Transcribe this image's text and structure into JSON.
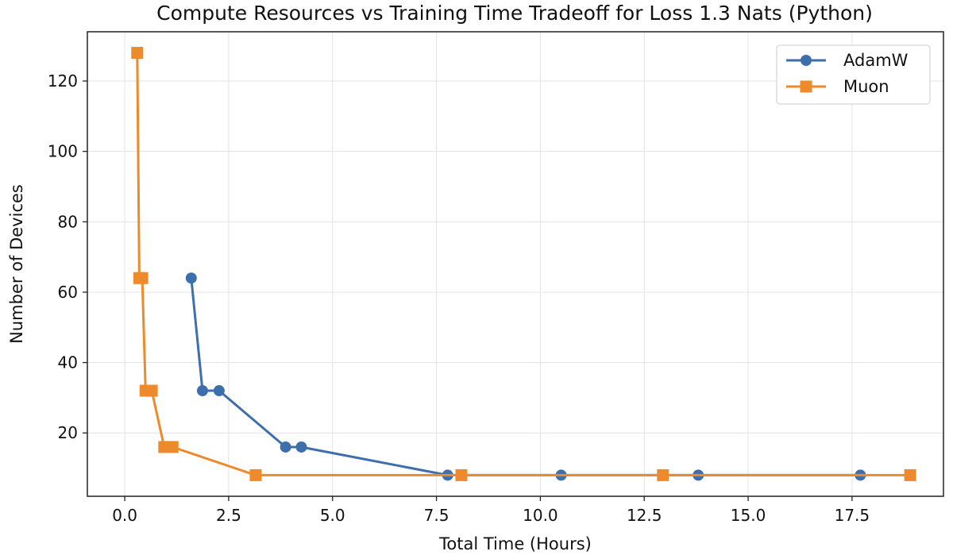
{
  "chart_data": {
    "type": "line",
    "title": "Compute Resources vs Training Time Tradeoff for Loss 1.3 Nats (Python)",
    "xlabel": "Total Time (Hours)",
    "ylabel": "Number of Devices",
    "xlim": [
      -0.9,
      19.7
    ],
    "ylim": [
      2,
      134
    ],
    "xticks": [
      0.0,
      2.5,
      5.0,
      7.5,
      10.0,
      12.5,
      15.0,
      17.5
    ],
    "xtick_labels": [
      "0.0",
      "2.5",
      "5.0",
      "7.5",
      "10.0",
      "12.5",
      "15.0",
      "17.5"
    ],
    "yticks": [
      20,
      40,
      60,
      80,
      100,
      120
    ],
    "ytick_labels": [
      "20",
      "40",
      "60",
      "80",
      "100",
      "120"
    ],
    "grid": true,
    "legend_position": "top-right",
    "series": [
      {
        "name": "AdamW",
        "color": "#3e6fad",
        "marker": "circle",
        "points": [
          {
            "x": 1.6,
            "y": 64
          },
          {
            "x": 1.87,
            "y": 32
          },
          {
            "x": 2.27,
            "y": 32
          },
          {
            "x": 3.87,
            "y": 16
          },
          {
            "x": 4.25,
            "y": 16
          },
          {
            "x": 7.77,
            "y": 8
          },
          {
            "x": 10.5,
            "y": 8
          },
          {
            "x": 13.8,
            "y": 8
          },
          {
            "x": 17.7,
            "y": 8
          }
        ]
      },
      {
        "name": "Muon",
        "color": "#ed8a2b",
        "marker": "square",
        "points": [
          {
            "x": 0.3,
            "y": 128
          },
          {
            "x": 0.35,
            "y": 64
          },
          {
            "x": 0.42,
            "y": 64
          },
          {
            "x": 0.5,
            "y": 32
          },
          {
            "x": 0.65,
            "y": 32
          },
          {
            "x": 0.95,
            "y": 16
          },
          {
            "x": 1.15,
            "y": 16
          },
          {
            "x": 3.15,
            "y": 8
          },
          {
            "x": 8.1,
            "y": 8
          },
          {
            "x": 12.95,
            "y": 8
          },
          {
            "x": 18.9,
            "y": 8
          }
        ]
      }
    ]
  }
}
